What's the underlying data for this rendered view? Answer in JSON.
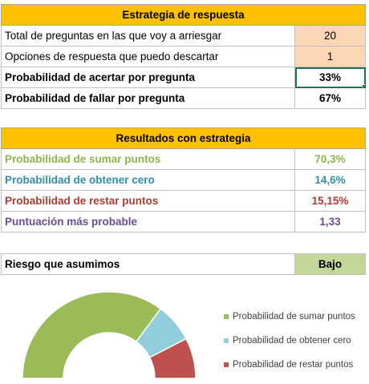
{
  "strategy": {
    "header": "Estrategia de respuesta",
    "rows": [
      {
        "label": "Total de preguntas en las que voy a arriesgar",
        "value": "20"
      },
      {
        "label": "Opciones de respuesta que puedo descartar",
        "value": "1"
      },
      {
        "label": "Probabilidad de acertar por pregunta",
        "value": "33%"
      },
      {
        "label": "Probabilidad de fallar por pregunta",
        "value": "67%"
      }
    ]
  },
  "results": {
    "header": "Resultados con estrategia",
    "rows": [
      {
        "label": "Probabilidad de sumar puntos",
        "value": "70,3%"
      },
      {
        "label": "Probabilidad de obtener cero",
        "value": "14,6%"
      },
      {
        "label": "Probabilidad de restar puntos",
        "value": "15,15%"
      },
      {
        "label": "Puntuación más probable",
        "value": "1,33"
      }
    ]
  },
  "risk": {
    "label": "Riesgo que asumimos",
    "value": "Bajo"
  },
  "colors": {
    "green": "#9bbb59",
    "teal": "#92cddc",
    "red": "#c0504d",
    "header": "#ffc000"
  },
  "chart_data": {
    "type": "pie",
    "categories": [
      "Probabilidad de sumar puntos",
      "Probabilidad de obtener cero",
      "Probabilidad de restar puntos"
    ],
    "values": [
      70.3,
      14.6,
      15.15
    ],
    "legend": "right"
  }
}
